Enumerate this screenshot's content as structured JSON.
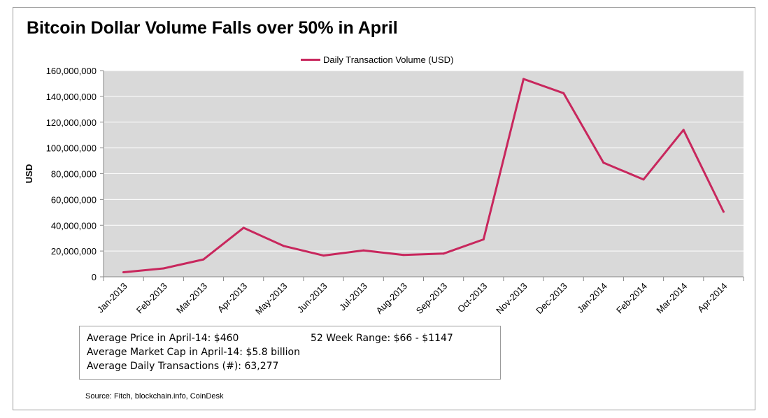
{
  "title": "Bitcoin Dollar Volume Falls over 50% in April",
  "legend": {
    "label": "Daily Transaction Volume (USD)",
    "icon": "line-swatch"
  },
  "colors": {
    "series": "#c8275d",
    "plot_bg": "#d9d9d9",
    "grid": "#ffffff"
  },
  "info_box": {
    "avg_price": "Average Price in April-14: $460",
    "avg_market_cap": "Average Market Cap in April-14: $5.8 billion",
    "avg_transactions": "Average Daily Transactions (#): 63,277",
    "week_range": "52 Week Range: $66 - $1147"
  },
  "source": "Source: Fitch, blockchain.info, CoinDesk",
  "chart_data": {
    "type": "line",
    "title": "Bitcoin Dollar Volume Falls over 50% in April",
    "ylabel": "USD",
    "xlabel": "",
    "ylim": [
      0,
      160000000
    ],
    "yticks": [
      0,
      20000000,
      40000000,
      60000000,
      80000000,
      100000000,
      120000000,
      140000000,
      160000000
    ],
    "ytick_labels": [
      "0",
      "20,000,000",
      "40,000,000",
      "60,000,000",
      "80,000,000",
      "100,000,000",
      "120,000,000",
      "140,000,000",
      "160,000,000"
    ],
    "grid": true,
    "legend_position": "top-center",
    "categories": [
      "Jan-2013",
      "Feb-2013",
      "Mar-2013",
      "Apr-2013",
      "May-2013",
      "Jun-2013",
      "Jul-2013",
      "Aug-2013",
      "Sep-2013",
      "Oct-2013",
      "Nov-2013",
      "Dec-2013",
      "Jan-2014",
      "Feb-2014",
      "Mar-2014",
      "Apr-2014"
    ],
    "series": [
      {
        "name": "Daily Transaction Volume (USD)",
        "values": [
          3500000,
          6500000,
          13500000,
          38000000,
          24000000,
          16500000,
          20500000,
          17000000,
          18000000,
          29000000,
          153500000,
          142500000,
          88500000,
          75500000,
          114000000,
          50500000
        ]
      }
    ]
  }
}
